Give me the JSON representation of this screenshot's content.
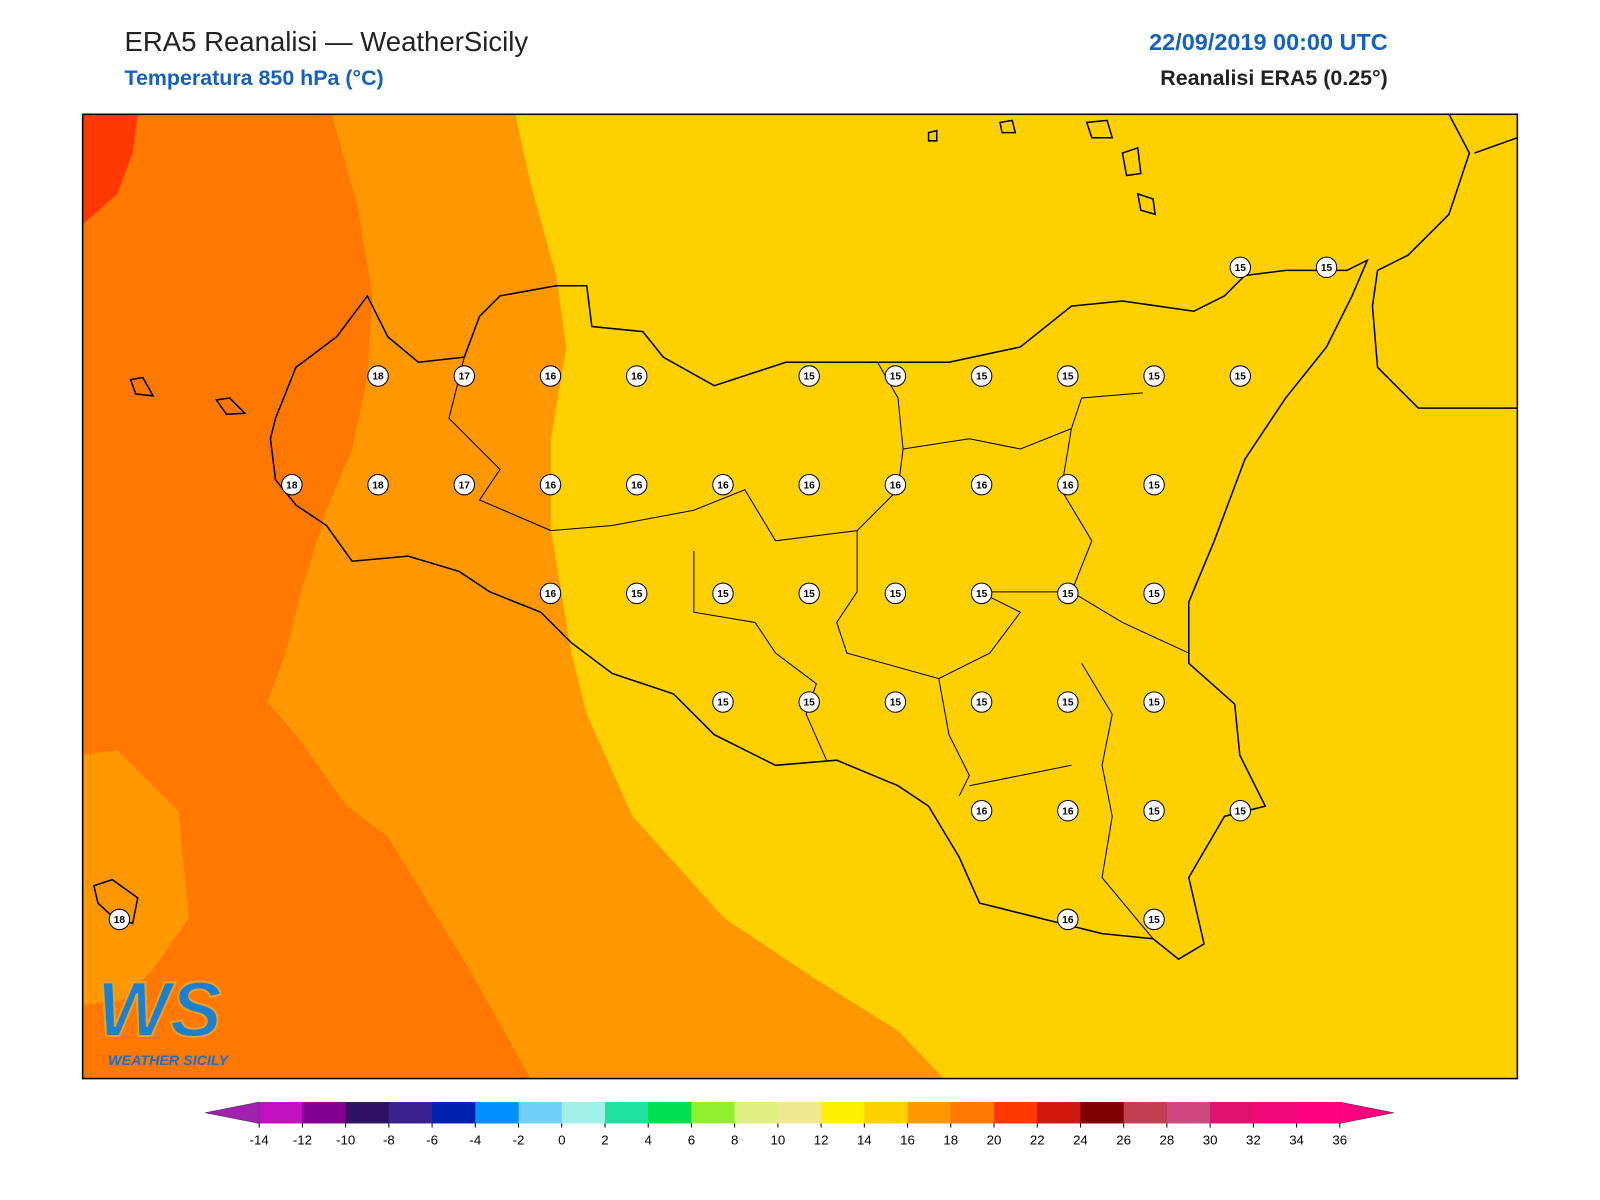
{
  "header": {
    "title": "ERA5 Reanalisi — WeatherSicily",
    "subtitle": "Temperatura 850 hPa (°C)",
    "date": "22/09/2019 00:00 UTC",
    "source": "Reanalisi ERA5 (0.25°)"
  },
  "logo": {
    "mark": "WS",
    "name": "WEATHER SICILY"
  },
  "colorbar": {
    "ticks": [
      -14,
      -12,
      -10,
      -8,
      -6,
      -4,
      -2,
      0,
      2,
      4,
      6,
      8,
      10,
      12,
      14,
      16,
      18,
      20,
      22,
      24,
      26,
      28,
      30,
      32,
      34,
      36
    ],
    "colors": [
      "#c010c0",
      "#800090",
      "#301060",
      "#3b2090",
      "#0020b0",
      "#0090ff",
      "#70d0f8",
      "#a0f0e8",
      "#20e0a0",
      "#00e050",
      "#90f030",
      "#e0f080",
      "#f0e890",
      "#fff000",
      "#ffd000",
      "#ff9800",
      "#ff7800",
      "#ff3800",
      "#d01810",
      "#800000",
      "#c04050",
      "#d04880",
      "#e01070",
      "#f00878",
      "#ff0080"
    ],
    "under_color": "#a020b0",
    "over_color": "#ff0080"
  },
  "stations": {
    "values": [
      [
        null,
        null,
        null,
        null,
        null,
        null,
        null,
        null,
        null,
        null,
        null,
        null,
        null,
        15,
        15
      ],
      [
        null,
        null,
        null,
        18,
        17,
        16,
        16,
        null,
        15,
        15,
        15,
        15,
        15,
        15,
        null
      ],
      [
        null,
        null,
        18,
        18,
        17,
        16,
        16,
        16,
        16,
        16,
        16,
        16,
        15,
        null,
        null
      ],
      [
        null,
        null,
        null,
        null,
        null,
        16,
        15,
        15,
        15,
        15,
        15,
        15,
        15,
        null,
        null
      ],
      [
        null,
        null,
        null,
        null,
        null,
        null,
        null,
        15,
        15,
        15,
        15,
        15,
        15,
        null,
        null
      ],
      [
        null,
        null,
        null,
        null,
        null,
        null,
        null,
        null,
        null,
        null,
        16,
        16,
        15,
        15,
        null
      ],
      [
        18,
        null,
        null,
        null,
        null,
        null,
        null,
        null,
        null,
        null,
        null,
        16,
        15,
        null,
        null
      ]
    ]
  }
}
